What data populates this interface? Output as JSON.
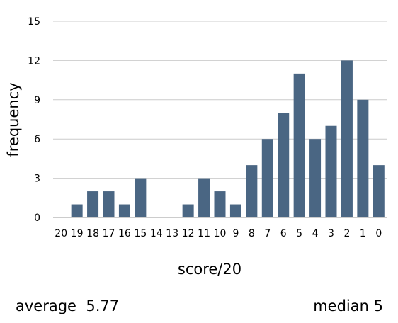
{
  "chart_data": {
    "type": "bar",
    "categories": [
      "20",
      "19",
      "18",
      "17",
      "16",
      "15",
      "14",
      "13",
      "12",
      "11",
      "10",
      "9",
      "8",
      "7",
      "6",
      "5",
      "4",
      "3",
      "2",
      "1",
      "0"
    ],
    "values": [
      0,
      1,
      2,
      2,
      1,
      3,
      0,
      0,
      1,
      3,
      2,
      1,
      4,
      6,
      8,
      11,
      6,
      7,
      12,
      9,
      4
    ],
    "xlabel": "score/20",
    "ylabel": "frequency",
    "ylim": [
      0,
      15
    ],
    "yticks": [
      "0",
      "3",
      "6",
      "9",
      "12",
      "15"
    ],
    "grid": true,
    "bar_color": "#4a6683",
    "grid_color": "#cccccc"
  },
  "stats": {
    "average_label": "average",
    "average_value": "5.77",
    "median_label": "median",
    "median_value": "5"
  }
}
